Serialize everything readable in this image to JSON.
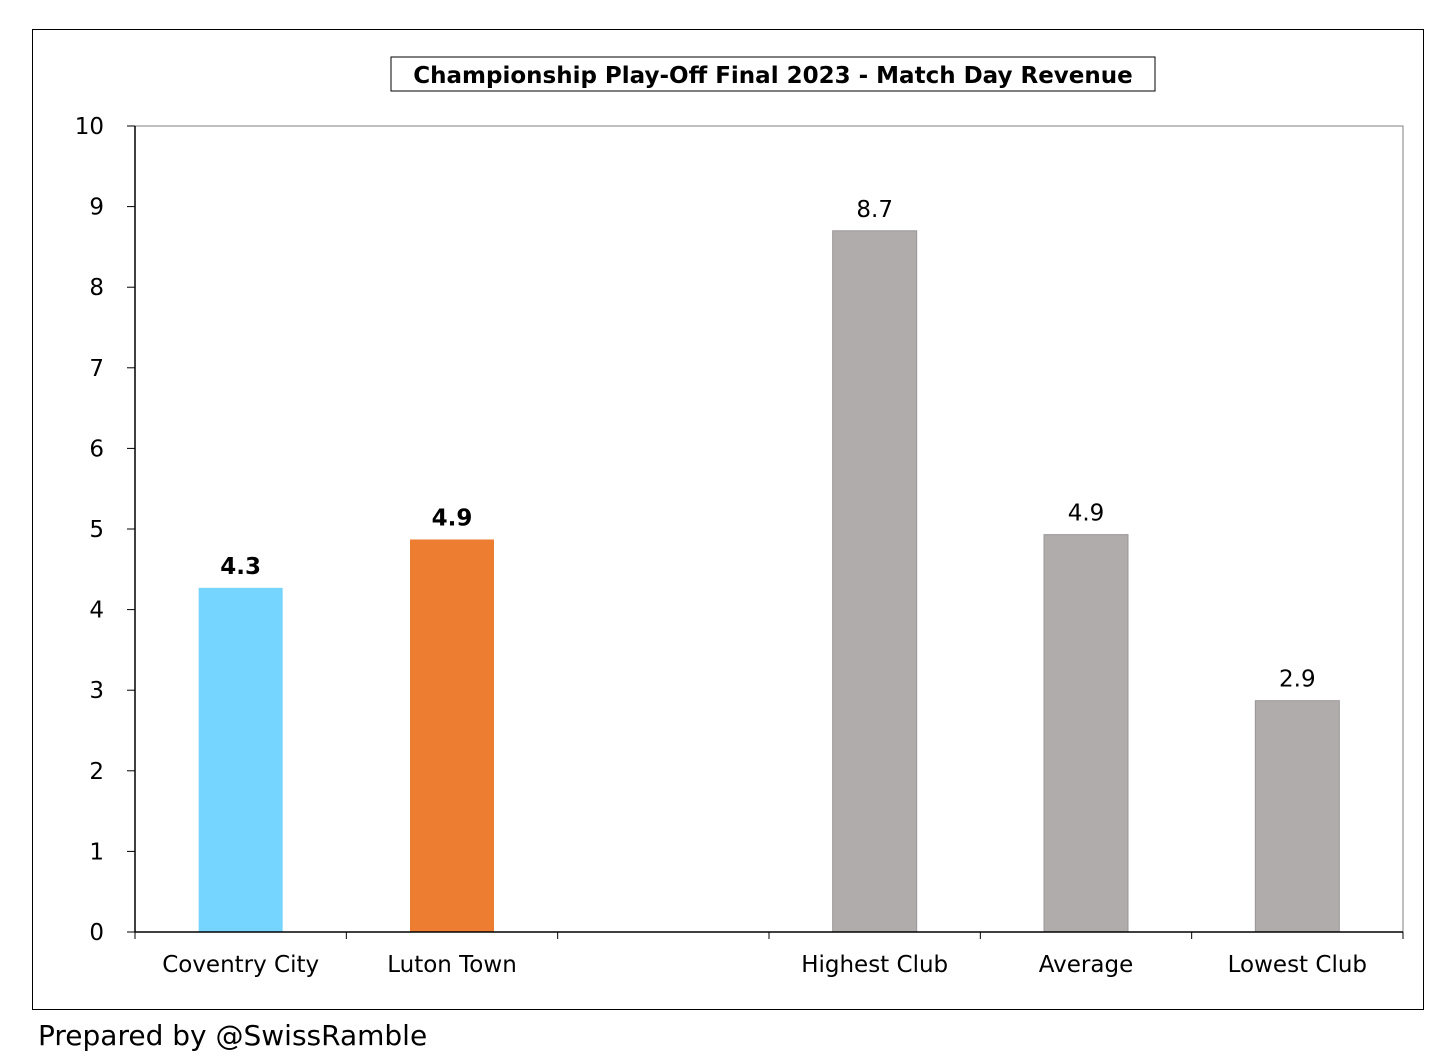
{
  "chart_data": {
    "type": "bar",
    "title": "Championship Play-Off Final 2023 - Match Day Revenue",
    "xlabel": "",
    "ylabel": "",
    "ylim": [
      0,
      10
    ],
    "yticks": [
      "0",
      "1",
      "2",
      "3",
      "4",
      "5",
      "6",
      "7",
      "8",
      "9",
      "10"
    ],
    "grid": false,
    "legend": "none",
    "categories": [
      "Coventry City",
      "Luton Town",
      "",
      "Highest Club",
      "Average",
      "Lowest Club"
    ],
    "values": [
      4.27,
      4.87,
      null,
      8.7,
      4.93,
      2.87
    ],
    "labels": [
      "4.3",
      "4.9",
      "",
      "8.7",
      "4.9",
      "2.9"
    ],
    "label_bold": [
      true,
      true,
      false,
      false,
      false,
      false
    ],
    "colors": [
      "#75D5FF",
      "#ED7D31",
      "",
      "#B0ACAC",
      "#B0ACAC",
      "#B0ACAC"
    ]
  },
  "footer": "Prepared by @SwissRamble"
}
